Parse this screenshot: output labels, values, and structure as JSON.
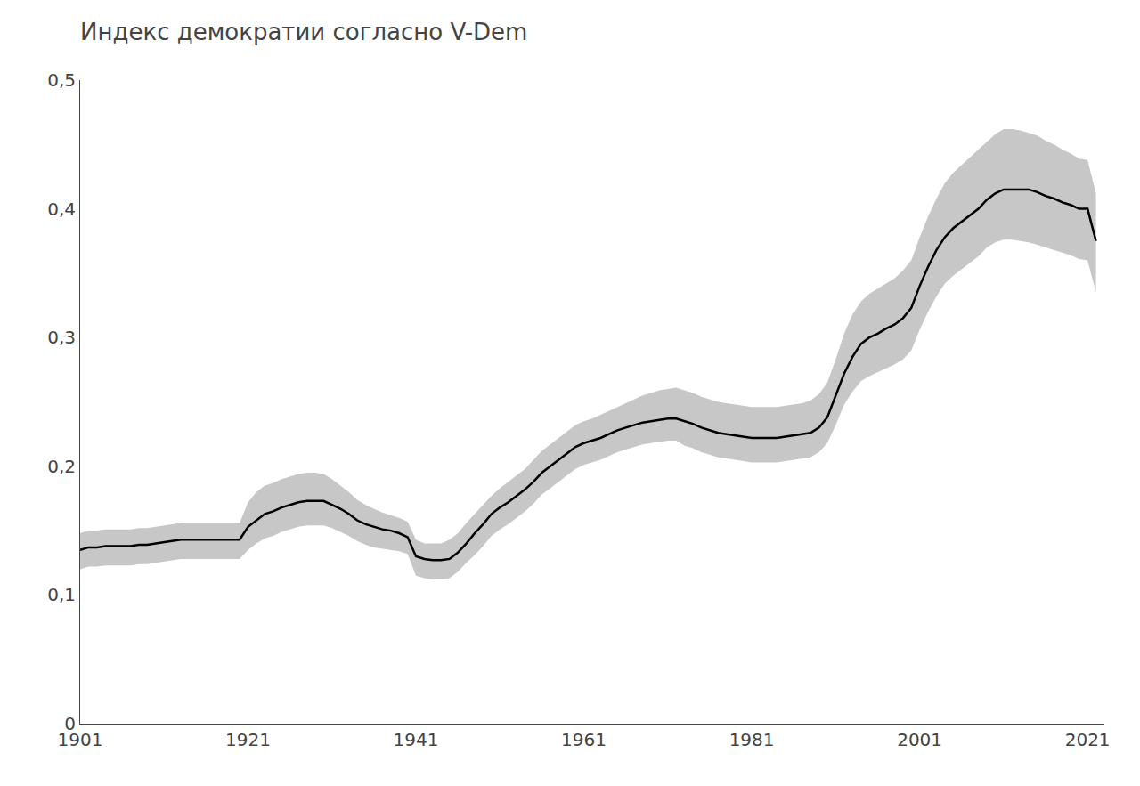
{
  "chart_data": {
    "type": "line",
    "title": "Индекс демократии согласно V-Dem",
    "x": [
      1901,
      1902,
      1903,
      1904,
      1905,
      1906,
      1907,
      1908,
      1909,
      1910,
      1911,
      1912,
      1913,
      1914,
      1915,
      1916,
      1917,
      1918,
      1919,
      1920,
      1921,
      1922,
      1923,
      1924,
      1925,
      1926,
      1927,
      1928,
      1929,
      1930,
      1931,
      1932,
      1933,
      1934,
      1935,
      1936,
      1937,
      1938,
      1939,
      1940,
      1941,
      1942,
      1943,
      1944,
      1945,
      1946,
      1947,
      1948,
      1949,
      1950,
      1951,
      1952,
      1953,
      1954,
      1955,
      1956,
      1957,
      1958,
      1959,
      1960,
      1961,
      1962,
      1963,
      1964,
      1965,
      1966,
      1967,
      1968,
      1969,
      1970,
      1971,
      1972,
      1973,
      1974,
      1975,
      1976,
      1977,
      1978,
      1979,
      1980,
      1981,
      1982,
      1983,
      1984,
      1985,
      1986,
      1987,
      1988,
      1989,
      1990,
      1991,
      1992,
      1993,
      1994,
      1995,
      1996,
      1997,
      1998,
      1999,
      2000,
      2001,
      2002,
      2003,
      2004,
      2005,
      2006,
      2007,
      2008,
      2009,
      2010,
      2011,
      2012,
      2013,
      2014,
      2015,
      2016,
      2017,
      2018,
      2019,
      2020,
      2021,
      2022
    ],
    "values": [
      0.135,
      0.137,
      0.137,
      0.138,
      0.138,
      0.138,
      0.138,
      0.139,
      0.139,
      0.14,
      0.141,
      0.142,
      0.143,
      0.143,
      0.143,
      0.143,
      0.143,
      0.143,
      0.143,
      0.143,
      0.153,
      0.158,
      0.163,
      0.165,
      0.168,
      0.17,
      0.172,
      0.173,
      0.173,
      0.173,
      0.17,
      0.167,
      0.163,
      0.158,
      0.155,
      0.153,
      0.151,
      0.15,
      0.148,
      0.145,
      0.13,
      0.128,
      0.127,
      0.127,
      0.128,
      0.133,
      0.14,
      0.148,
      0.155,
      0.163,
      0.168,
      0.172,
      0.177,
      0.182,
      0.188,
      0.195,
      0.2,
      0.205,
      0.21,
      0.215,
      0.218,
      0.22,
      0.222,
      0.225,
      0.228,
      0.23,
      0.232,
      0.234,
      0.235,
      0.236,
      0.237,
      0.237,
      0.235,
      0.233,
      0.23,
      0.228,
      0.226,
      0.225,
      0.224,
      0.223,
      0.222,
      0.222,
      0.222,
      0.222,
      0.223,
      0.224,
      0.225,
      0.226,
      0.23,
      0.238,
      0.255,
      0.272,
      0.285,
      0.295,
      0.3,
      0.303,
      0.307,
      0.31,
      0.315,
      0.323,
      0.34,
      0.355,
      0.368,
      0.378,
      0.385,
      0.39,
      0.395,
      0.4,
      0.407,
      0.412,
      0.415,
      0.415,
      0.415,
      0.415,
      0.413,
      0.41,
      0.408,
      0.405,
      0.403,
      0.4,
      0.4,
      0.375
    ],
    "color": "#000000",
    "band": {
      "upper": [
        0.148,
        0.15,
        0.15,
        0.151,
        0.151,
        0.151,
        0.151,
        0.152,
        0.152,
        0.153,
        0.154,
        0.155,
        0.156,
        0.156,
        0.156,
        0.156,
        0.156,
        0.156,
        0.156,
        0.156,
        0.172,
        0.18,
        0.185,
        0.187,
        0.19,
        0.192,
        0.194,
        0.195,
        0.195,
        0.194,
        0.19,
        0.185,
        0.18,
        0.174,
        0.17,
        0.167,
        0.164,
        0.162,
        0.16,
        0.157,
        0.143,
        0.14,
        0.14,
        0.14,
        0.143,
        0.148,
        0.156,
        0.163,
        0.17,
        0.177,
        0.183,
        0.188,
        0.193,
        0.198,
        0.205,
        0.212,
        0.217,
        0.222,
        0.227,
        0.232,
        0.235,
        0.237,
        0.24,
        0.243,
        0.246,
        0.249,
        0.252,
        0.255,
        0.257,
        0.259,
        0.26,
        0.261,
        0.259,
        0.257,
        0.254,
        0.252,
        0.25,
        0.249,
        0.248,
        0.247,
        0.246,
        0.246,
        0.246,
        0.246,
        0.247,
        0.248,
        0.249,
        0.251,
        0.256,
        0.265,
        0.283,
        0.303,
        0.318,
        0.328,
        0.334,
        0.338,
        0.342,
        0.346,
        0.352,
        0.36,
        0.378,
        0.394,
        0.408,
        0.42,
        0.428,
        0.434,
        0.44,
        0.446,
        0.452,
        0.458,
        0.462,
        0.462,
        0.461,
        0.459,
        0.457,
        0.453,
        0.45,
        0.446,
        0.443,
        0.439,
        0.438,
        0.412
      ],
      "lower": [
        0.12,
        0.122,
        0.122,
        0.123,
        0.123,
        0.123,
        0.123,
        0.124,
        0.124,
        0.125,
        0.126,
        0.127,
        0.128,
        0.128,
        0.128,
        0.128,
        0.128,
        0.128,
        0.128,
        0.128,
        0.135,
        0.14,
        0.144,
        0.146,
        0.149,
        0.151,
        0.153,
        0.154,
        0.154,
        0.154,
        0.152,
        0.149,
        0.146,
        0.142,
        0.139,
        0.137,
        0.136,
        0.135,
        0.134,
        0.132,
        0.115,
        0.113,
        0.112,
        0.112,
        0.113,
        0.118,
        0.125,
        0.131,
        0.138,
        0.146,
        0.151,
        0.155,
        0.16,
        0.165,
        0.171,
        0.178,
        0.183,
        0.188,
        0.193,
        0.198,
        0.201,
        0.203,
        0.205,
        0.208,
        0.211,
        0.213,
        0.215,
        0.217,
        0.218,
        0.219,
        0.22,
        0.22,
        0.216,
        0.214,
        0.211,
        0.209,
        0.207,
        0.206,
        0.205,
        0.204,
        0.203,
        0.203,
        0.203,
        0.203,
        0.204,
        0.205,
        0.206,
        0.207,
        0.211,
        0.218,
        0.232,
        0.248,
        0.258,
        0.266,
        0.27,
        0.273,
        0.276,
        0.279,
        0.283,
        0.29,
        0.306,
        0.32,
        0.332,
        0.342,
        0.348,
        0.353,
        0.358,
        0.363,
        0.37,
        0.374,
        0.376,
        0.376,
        0.375,
        0.374,
        0.372,
        0.37,
        0.368,
        0.366,
        0.364,
        0.361,
        0.36,
        0.335
      ],
      "color": "#999999"
    },
    "xlim": [
      1901,
      2023
    ],
    "ylim": [
      0.0,
      0.5
    ],
    "xticks": [
      1901,
      1921,
      1941,
      1961,
      1981,
      2001,
      2021
    ],
    "yticks": [
      0,
      {
        "value": 0.1,
        "label": "0,1"
      },
      {
        "value": 0.2,
        "label": "0,2"
      },
      {
        "value": 0.3,
        "label": "0,3"
      },
      {
        "value": 0.4,
        "label": "0,4"
      },
      {
        "value": 0.5,
        "label": "0,5"
      }
    ],
    "grid": false
  }
}
